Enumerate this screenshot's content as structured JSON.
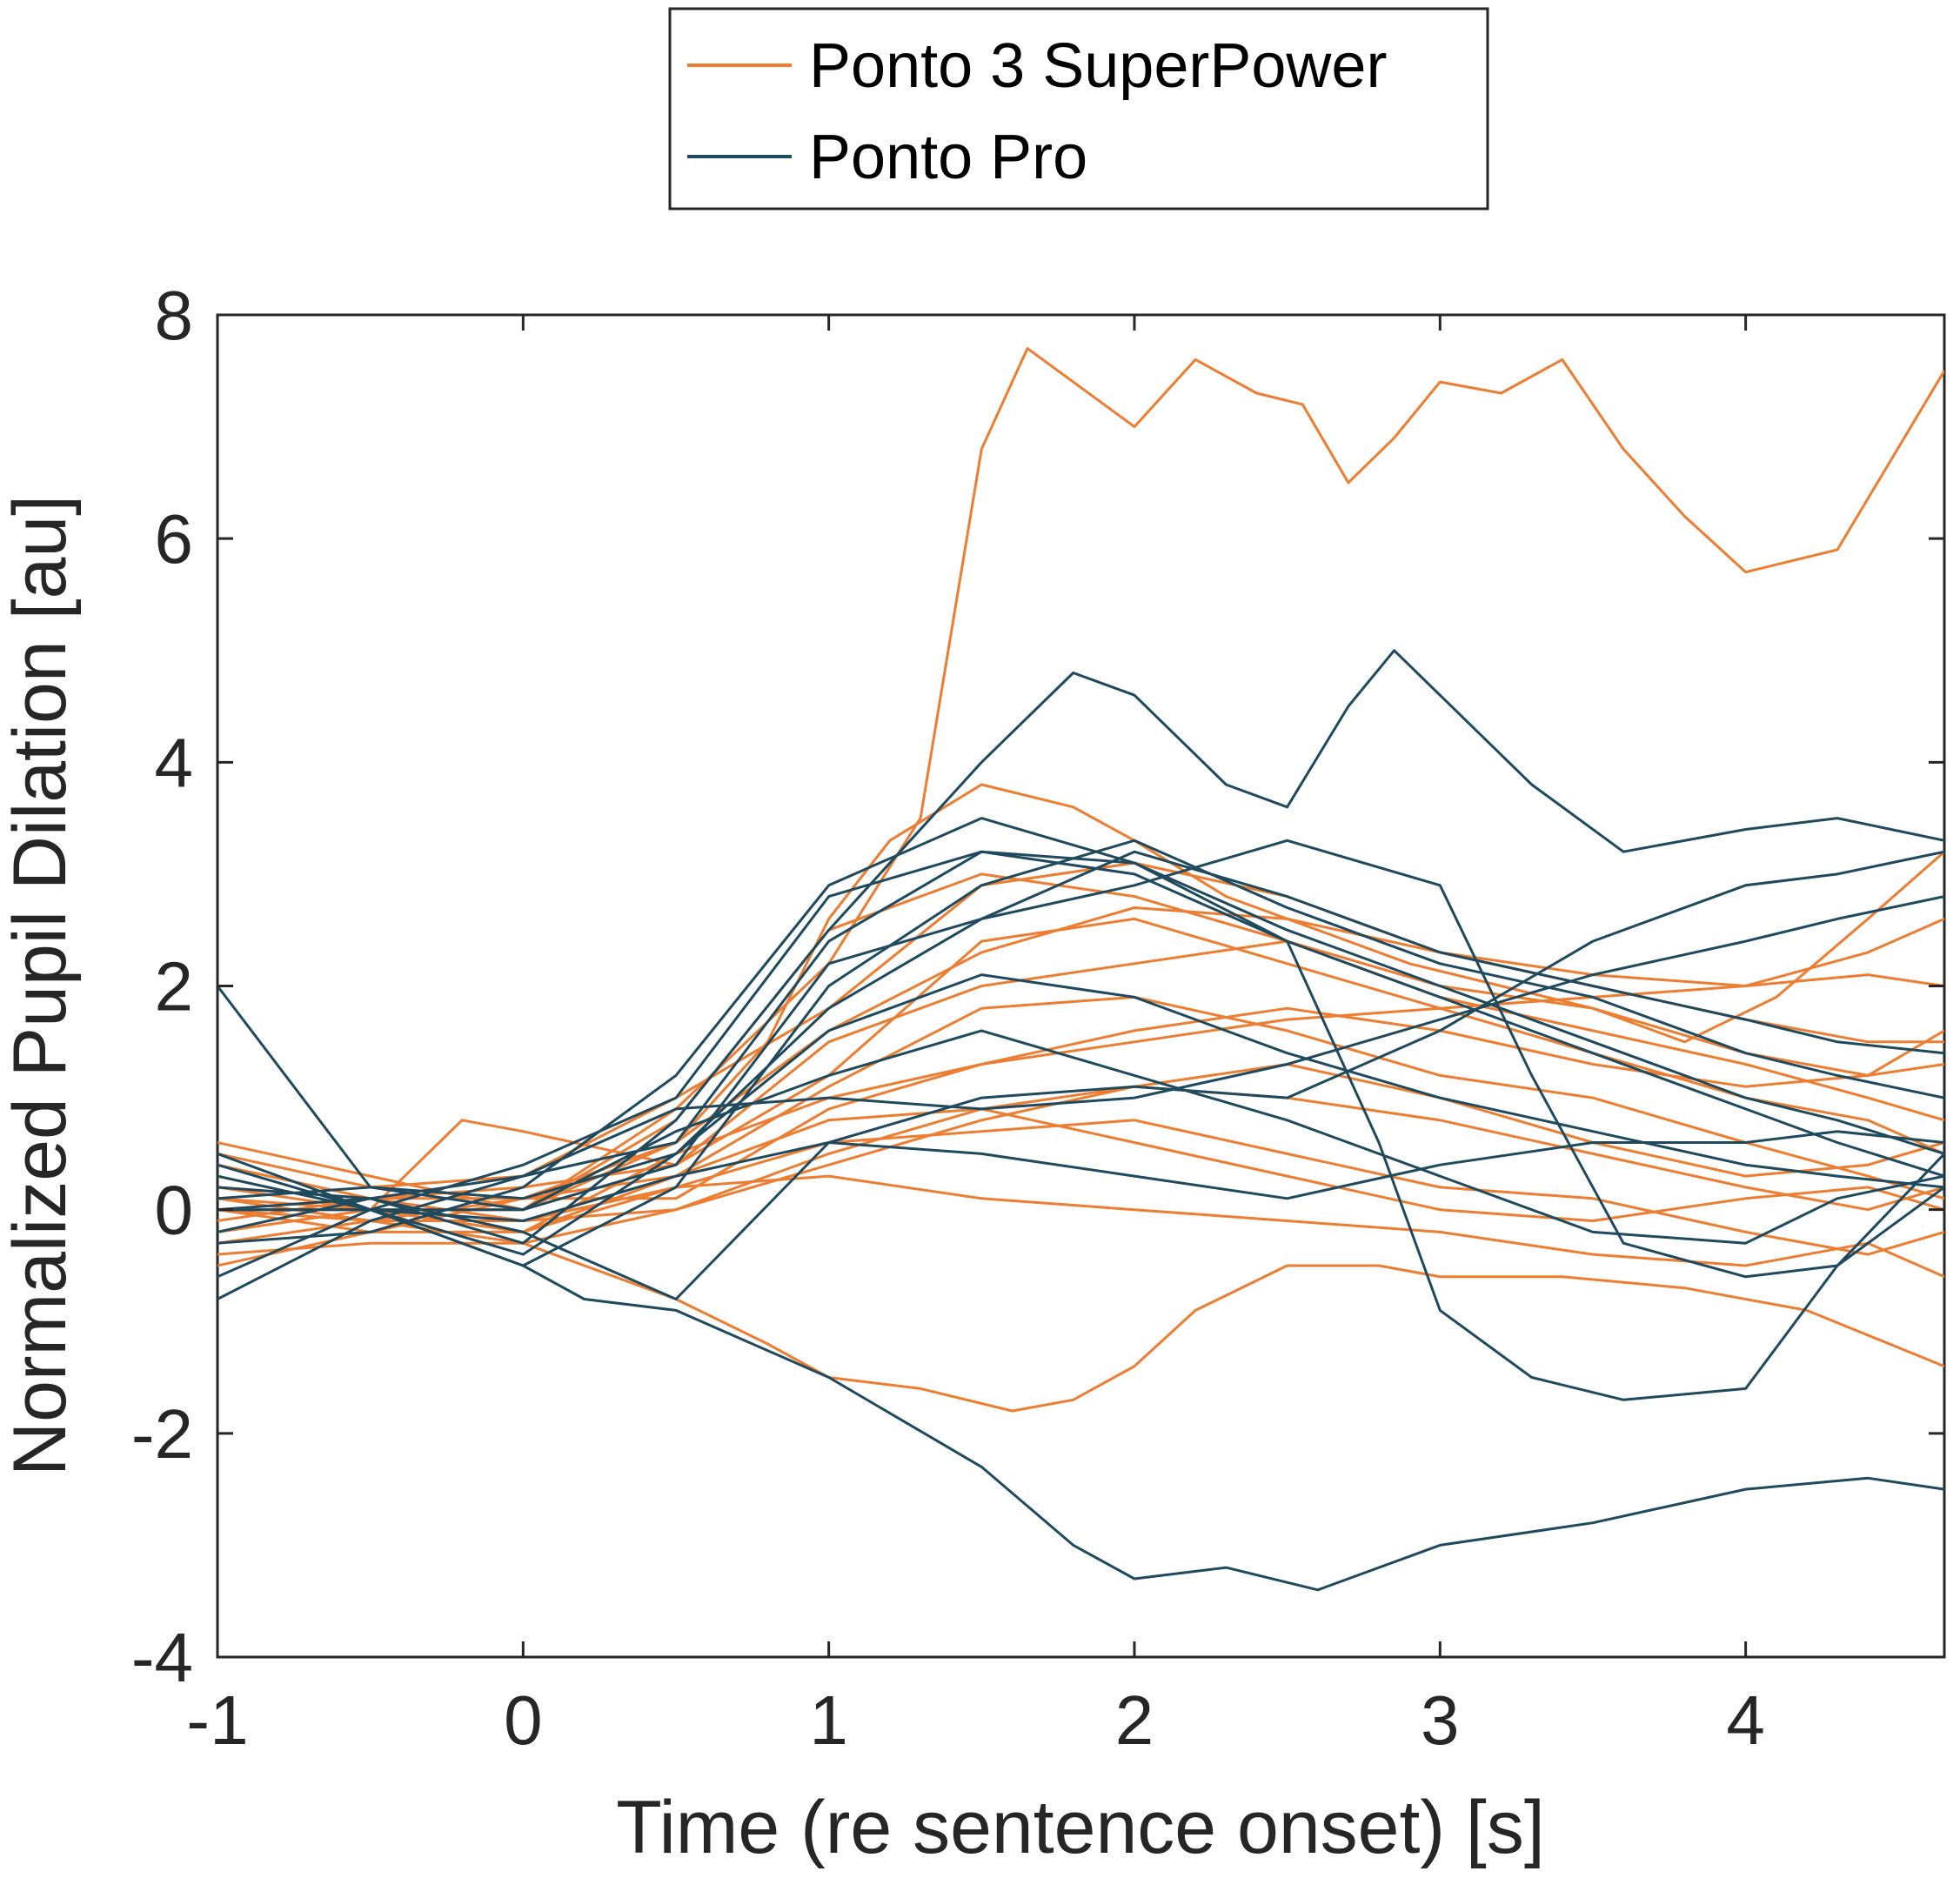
{
  "chart_data": {
    "type": "line",
    "title": "",
    "xlabel": "Time (re sentence onset) [s]",
    "ylabel": "Normalized Pupil Dilation [au]",
    "xlim": [
      -1,
      4.65
    ],
    "ylim": [
      -4,
      8
    ],
    "xticks": [
      -1,
      0,
      1,
      2,
      3,
      4
    ],
    "yticks": [
      -4,
      -2,
      0,
      2,
      4,
      6,
      8
    ],
    "xtick_labels": [
      "-1",
      "0",
      "1",
      "2",
      "3",
      "4"
    ],
    "ytick_labels": [
      "-4",
      "-2",
      "0",
      "2",
      "4",
      "6",
      "8"
    ],
    "grid": false,
    "legend": {
      "placement": "top-outside",
      "entries": [
        {
          "name": "Ponto 3 SuperPower",
          "color": "#ED7D31"
        },
        {
          "name": "Ponto Pro",
          "color": "#1F4A5E"
        }
      ]
    },
    "series": [
      {
        "group": "Ponto 3 SuperPower",
        "color": "#ED7D31",
        "x": [
          -1,
          -0.5,
          0,
          0.5,
          1,
          1.3,
          1.5,
          1.65,
          1.8,
          2.0,
          2.2,
          2.4,
          2.55,
          2.7,
          2.85,
          3.0,
          3.2,
          3.4,
          3.6,
          3.8,
          4.0,
          4.3,
          4.65
        ],
        "y": [
          0.1,
          0.0,
          0.0,
          0.9,
          2.2,
          3.5,
          6.8,
          7.7,
          7.4,
          7.0,
          7.6,
          7.3,
          7.2,
          6.5,
          6.9,
          7.4,
          7.3,
          7.6,
          6.8,
          6.2,
          5.7,
          5.9,
          7.5
        ]
      },
      {
        "group": "Ponto 3 SuperPower",
        "color": "#ED7D31",
        "x": [
          -1,
          -0.5,
          0,
          0.5,
          0.8,
          1.0,
          1.3,
          1.6,
          1.8,
          2.0,
          2.2,
          2.5,
          2.8,
          3.0,
          3.4,
          3.8,
          4.2,
          4.65
        ],
        "y": [
          -0.3,
          -0.1,
          -0.3,
          -0.8,
          -1.2,
          -1.5,
          -1.6,
          -1.8,
          -1.7,
          -1.4,
          -0.9,
          -0.5,
          -0.5,
          -0.6,
          -0.6,
          -0.7,
          -0.9,
          -1.4
        ]
      },
      {
        "group": "Ponto 3 SuperPower",
        "color": "#ED7D31",
        "x": [
          -1,
          -0.5,
          0,
          0.5,
          0.8,
          1.0,
          1.2,
          1.5,
          1.8,
          2.0,
          2.3,
          2.6,
          2.9,
          3.2,
          3.5,
          3.8,
          4.1,
          4.4,
          4.65
        ],
        "y": [
          0.2,
          0.1,
          0.1,
          0.6,
          1.5,
          2.6,
          3.3,
          3.8,
          3.6,
          3.3,
          2.8,
          2.5,
          2.2,
          2.0,
          1.8,
          1.5,
          1.9,
          2.6,
          3.2
        ]
      },
      {
        "group": "Ponto 3 SuperPower",
        "color": "#ED7D31",
        "x": [
          -1,
          -0.5,
          0,
          0.5,
          1.0,
          1.5,
          2.0,
          2.5,
          3.0,
          3.5,
          4.0,
          4.4,
          4.65
        ],
        "y": [
          0.0,
          -0.1,
          -0.1,
          0.0,
          0.5,
          0.9,
          1.1,
          1.0,
          0.8,
          0.5,
          0.2,
          0.0,
          0.2
        ]
      },
      {
        "group": "Ponto 3 SuperPower",
        "color": "#ED7D31",
        "x": [
          -1,
          -0.5,
          -0.2,
          0,
          0.5,
          1.0,
          1.5,
          2.0,
          2.5,
          3.0,
          3.5,
          4.0,
          4.4,
          4.65
        ],
        "y": [
          0.3,
          0.0,
          0.8,
          0.7,
          0.4,
          1.2,
          2.4,
          2.6,
          2.2,
          1.8,
          1.4,
          1.0,
          0.8,
          0.5
        ]
      },
      {
        "group": "Ponto 3 SuperPower",
        "color": "#ED7D31",
        "x": [
          -1,
          -0.5,
          0,
          0.5,
          1.0,
          1.5,
          2.0,
          2.5,
          3.0,
          3.5,
          4.0,
          4.4,
          4.65
        ],
        "y": [
          -0.2,
          0.0,
          -0.2,
          0.2,
          0.3,
          0.1,
          0.0,
          -0.1,
          -0.2,
          -0.4,
          -0.5,
          -0.3,
          -0.6
        ]
      },
      {
        "group": "Ponto 3 SuperPower",
        "color": "#ED7D31",
        "x": [
          -1,
          -0.5,
          0,
          0.5,
          1.0,
          1.5,
          2.0,
          2.5,
          3.0,
          3.5,
          4.0,
          4.4,
          4.65
        ],
        "y": [
          0.5,
          0.2,
          0.3,
          1.0,
          1.8,
          2.9,
          3.1,
          2.8,
          2.3,
          2.1,
          2.0,
          2.3,
          2.6
        ]
      },
      {
        "group": "Ponto 3 SuperPower",
        "color": "#ED7D31",
        "x": [
          -1,
          -0.5,
          0,
          0.5,
          1.0,
          1.5,
          2.0,
          2.5,
          3.0,
          3.5,
          4.0,
          4.4,
          4.65
        ],
        "y": [
          -0.5,
          -0.2,
          -0.2,
          0.5,
          1.0,
          1.3,
          1.6,
          1.8,
          1.6,
          1.3,
          1.1,
          1.2,
          1.6
        ]
      },
      {
        "group": "Ponto 3 SuperPower",
        "color": "#ED7D31",
        "x": [
          -1,
          -0.5,
          0,
          0.5,
          1.0,
          1.5,
          2.0,
          2.5,
          3.0,
          3.5,
          4.0,
          4.4,
          4.65
        ],
        "y": [
          0.0,
          -0.2,
          0.1,
          0.3,
          0.8,
          0.9,
          0.6,
          0.3,
          0.0,
          -0.1,
          0.1,
          0.2,
          0.0
        ]
      },
      {
        "group": "Ponto 3 SuperPower",
        "color": "#ED7D31",
        "x": [
          -1,
          -0.5,
          0,
          0.5,
          1.0,
          1.5,
          2.0,
          2.5,
          3.0,
          3.5,
          4.0,
          4.4,
          4.65
        ],
        "y": [
          0.4,
          0.1,
          0.2,
          0.4,
          1.5,
          2.0,
          2.2,
          2.4,
          2.0,
          1.8,
          1.4,
          1.2,
          1.3
        ]
      },
      {
        "group": "Ponto 3 SuperPower",
        "color": "#ED7D31",
        "x": [
          -1,
          -0.5,
          0,
          0.5,
          1.0,
          1.5,
          2.0,
          2.5,
          3.0,
          3.5,
          4.0,
          4.4,
          4.65
        ],
        "y": [
          -0.1,
          0.1,
          -0.1,
          0.2,
          0.6,
          0.7,
          0.8,
          0.5,
          0.2,
          0.1,
          -0.2,
          -0.4,
          -0.2
        ]
      },
      {
        "group": "Ponto 3 SuperPower",
        "color": "#ED7D31",
        "x": [
          -1,
          -0.5,
          0,
          0.5,
          1.0,
          1.5,
          2.0,
          2.5,
          3.0,
          3.5,
          4.0,
          4.4,
          4.65
        ],
        "y": [
          0.2,
          0.0,
          0.0,
          0.8,
          2.5,
          3.0,
          2.8,
          2.4,
          1.9,
          1.6,
          1.3,
          1.0,
          0.8
        ]
      },
      {
        "group": "Ponto 3 SuperPower",
        "color": "#ED7D31",
        "x": [
          -1,
          -0.5,
          0,
          0.5,
          1.0,
          1.5,
          2.0,
          2.5,
          3.0,
          3.5,
          4.0,
          4.4,
          4.65
        ],
        "y": [
          0.1,
          -0.1,
          0.1,
          0.1,
          0.9,
          1.3,
          1.5,
          1.7,
          1.8,
          1.9,
          2.0,
          2.1,
          2.0
        ]
      },
      {
        "group": "Ponto 3 SuperPower",
        "color": "#ED7D31",
        "x": [
          -1,
          -0.5,
          0,
          0.5,
          1.0,
          1.5,
          2.0,
          2.5,
          3.0,
          3.5,
          4.0,
          4.4,
          4.65
        ],
        "y": [
          -0.4,
          -0.3,
          -0.3,
          0.0,
          0.4,
          0.8,
          1.1,
          1.3,
          1.0,
          0.6,
          0.3,
          0.4,
          0.6
        ]
      },
      {
        "group": "Ponto 3 SuperPower",
        "color": "#ED7D31",
        "x": [
          -1,
          -0.5,
          0,
          0.5,
          1.0,
          1.5,
          2.0,
          2.5,
          3.0,
          3.5,
          4.0,
          4.4,
          4.65
        ],
        "y": [
          0.6,
          0.3,
          0.0,
          0.6,
          1.6,
          2.3,
          2.7,
          2.6,
          2.3,
          2.0,
          1.7,
          1.5,
          1.5
        ]
      },
      {
        "group": "Ponto 3 SuperPower",
        "color": "#ED7D31",
        "x": [
          -1,
          -0.5,
          0,
          0.5,
          1.0,
          1.5,
          2.0,
          2.5,
          3.0,
          3.5,
          4.0,
          4.4,
          4.65
        ],
        "y": [
          0.0,
          0.1,
          -0.2,
          0.3,
          1.1,
          1.8,
          1.9,
          1.6,
          1.2,
          1.0,
          0.6,
          0.3,
          0.1
        ]
      },
      {
        "group": "Ponto Pro",
        "color": "#1F4A5E",
        "x": [
          -1,
          -0.5,
          0,
          0.5,
          1.0,
          1.5,
          1.8,
          2.0,
          2.3,
          2.5,
          2.7,
          2.85,
          3.0,
          3.3,
          3.6,
          4.0,
          4.3,
          4.65
        ],
        "y": [
          0.0,
          0.1,
          -0.3,
          0.8,
          2.5,
          4.0,
          4.8,
          4.6,
          3.8,
          3.6,
          4.5,
          5.0,
          4.6,
          3.8,
          3.2,
          3.4,
          3.5,
          3.3
        ]
      },
      {
        "group": "Ponto Pro",
        "color": "#1F4A5E",
        "x": [
          -1,
          -0.5,
          0,
          0.2,
          0.5,
          1.0,
          1.5,
          1.8,
          2.0,
          2.3,
          2.6,
          3.0,
          3.5,
          4.0,
          4.4,
          4.65
        ],
        "y": [
          0.0,
          0.0,
          -0.5,
          -0.8,
          -0.9,
          -1.5,
          -2.3,
          -3.0,
          -3.3,
          -3.2,
          -3.4,
          -3.0,
          -2.8,
          -2.5,
          -2.4,
          -2.5
        ]
      },
      {
        "group": "Ponto Pro",
        "color": "#1F4A5E",
        "x": [
          -1,
          -0.5,
          0,
          0.5,
          1.0,
          1.5,
          2.0,
          2.5,
          2.8,
          3.0,
          3.3,
          3.6,
          4.0,
          4.3,
          4.65
        ],
        "y": [
          -0.8,
          -0.1,
          0.3,
          0.6,
          2.4,
          3.2,
          3.0,
          2.4,
          0.6,
          -0.9,
          -1.5,
          -1.7,
          -1.6,
          -0.5,
          0.5
        ]
      },
      {
        "group": "Ponto Pro",
        "color": "#1F4A5E",
        "x": [
          -1,
          -0.5,
          0,
          0.5,
          1.0,
          1.5,
          2.0,
          2.5,
          3.0,
          3.5,
          4.0,
          4.3,
          4.65
        ],
        "y": [
          2.0,
          0.2,
          0.1,
          0.5,
          1.8,
          2.6,
          3.2,
          2.8,
          2.3,
          2.0,
          1.7,
          1.5,
          1.4
        ]
      },
      {
        "group": "Ponto Pro",
        "color": "#1F4A5E",
        "x": [
          -1,
          -0.5,
          0,
          0.5,
          1.0,
          1.5,
          2.0,
          2.5,
          3.0,
          3.5,
          4.0,
          4.3,
          4.65
        ],
        "y": [
          0.3,
          0.0,
          0.4,
          1.0,
          2.8,
          3.2,
          3.1,
          2.5,
          2.0,
          1.5,
          1.0,
          0.8,
          0.5
        ]
      },
      {
        "group": "Ponto Pro",
        "color": "#1F4A5E",
        "x": [
          -1,
          -0.5,
          0,
          0.5,
          1.0,
          1.5,
          2.0,
          2.5,
          3.0,
          3.5,
          4.0,
          4.3,
          4.65
        ],
        "y": [
          -0.2,
          0.1,
          -0.2,
          -0.8,
          0.6,
          1.0,
          1.1,
          1.0,
          1.6,
          2.4,
          2.9,
          3.0,
          3.2
        ]
      },
      {
        "group": "Ponto Pro",
        "color": "#1F4A5E",
        "x": [
          -1,
          -0.5,
          0,
          0.5,
          1.0,
          1.5,
          2.0,
          2.5,
          3.0,
          3.5,
          4.0,
          4.3,
          4.65
        ],
        "y": [
          0.5,
          0.0,
          -0.5,
          0.2,
          2.0,
          2.9,
          3.3,
          2.7,
          2.2,
          1.9,
          1.4,
          1.2,
          1.0
        ]
      },
      {
        "group": "Ponto Pro",
        "color": "#1F4A5E",
        "x": [
          -1,
          -0.5,
          0,
          0.5,
          1.0,
          1.5,
          2.0,
          2.5,
          3.0,
          3.5,
          4.0,
          4.3,
          4.65
        ],
        "y": [
          0.1,
          0.2,
          0.0,
          0.7,
          1.2,
          1.6,
          1.2,
          0.8,
          0.3,
          -0.2,
          -0.3,
          0.1,
          0.3
        ]
      },
      {
        "group": "Ponto Pro",
        "color": "#1F4A5E",
        "x": [
          -1,
          -0.5,
          0,
          0.5,
          1.0,
          1.5,
          2.0,
          2.5,
          3.0,
          3.3,
          3.6,
          4.0,
          4.3,
          4.65
        ],
        "y": [
          -0.6,
          0.0,
          0.0,
          0.4,
          2.2,
          2.6,
          2.9,
          3.3,
          2.9,
          1.2,
          -0.3,
          -0.6,
          -0.5,
          0.2
        ]
      },
      {
        "group": "Ponto Pro",
        "color": "#1F4A5E",
        "x": [
          -1,
          -0.5,
          0,
          0.5,
          1.0,
          1.5,
          2.0,
          2.5,
          3.0,
          3.5,
          4.0,
          4.3,
          4.65
        ],
        "y": [
          0.2,
          0.1,
          0.3,
          0.9,
          1.0,
          0.9,
          1.0,
          1.3,
          1.7,
          2.1,
          2.4,
          2.6,
          2.8
        ]
      },
      {
        "group": "Ponto Pro",
        "color": "#1F4A5E",
        "x": [
          -1,
          -0.5,
          0,
          0.5,
          1.0,
          1.5,
          2.0,
          2.5,
          3.0,
          3.5,
          4.0,
          4.3,
          4.65
        ],
        "y": [
          -0.3,
          -0.2,
          0.2,
          1.2,
          2.9,
          3.5,
          3.1,
          2.4,
          1.9,
          1.4,
          0.9,
          0.6,
          0.3
        ]
      },
      {
        "group": "Ponto Pro",
        "color": "#1F4A5E",
        "x": [
          -1,
          -0.5,
          0,
          0.5,
          1.0,
          1.5,
          2.0,
          2.5,
          3.0,
          3.5,
          4.0,
          4.3,
          4.65
        ],
        "y": [
          0.0,
          0.0,
          -0.1,
          0.3,
          0.6,
          0.5,
          0.3,
          0.1,
          0.4,
          0.6,
          0.6,
          0.7,
          0.6
        ]
      },
      {
        "group": "Ponto Pro",
        "color": "#1F4A5E",
        "x": [
          -1,
          -0.5,
          0,
          0.5,
          1.0,
          1.5,
          2.0,
          2.5,
          3.0,
          3.5,
          4.0,
          4.3,
          4.65
        ],
        "y": [
          0.4,
          0.0,
          -0.4,
          0.5,
          1.6,
          2.1,
          1.9,
          1.4,
          1.0,
          0.7,
          0.4,
          0.3,
          0.2
        ]
      }
    ]
  }
}
